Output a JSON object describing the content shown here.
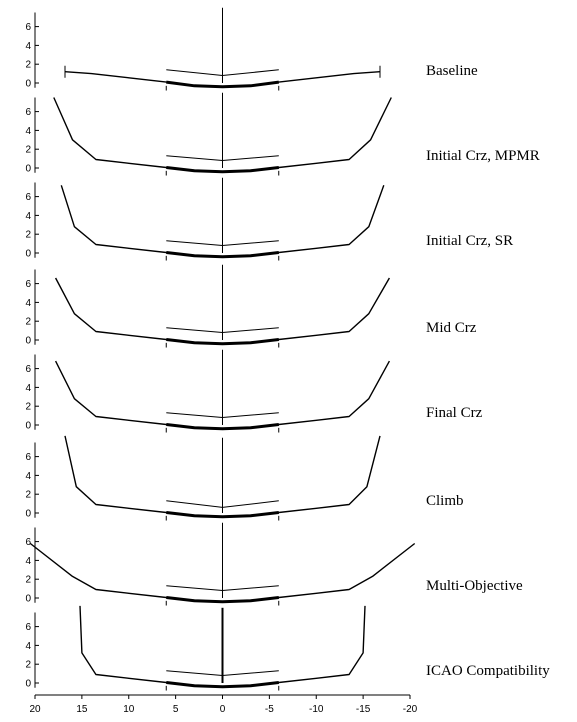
{
  "chart_data": {
    "type": "line",
    "x_ticks": [
      20,
      15,
      10,
      5,
      0,
      -5,
      -10,
      -15,
      -20
    ],
    "xlim": [
      20,
      -20
    ],
    "y_ticks": [
      0,
      2,
      4,
      6
    ],
    "ylim": [
      -0.5,
      7.5
    ],
    "colors": {
      "line": "#000000",
      "background": "#ffffff"
    },
    "panels": [
      {
        "label": "Baseline",
        "wing": [
          [
            16.8,
            1.2
          ],
          [
            14,
            1.0
          ],
          [
            10,
            0.55
          ],
          [
            6,
            0.1
          ],
          [
            3,
            -0.3
          ],
          [
            0,
            -0.4
          ],
          [
            -3,
            -0.3
          ],
          [
            -6,
            0.1
          ],
          [
            -10,
            0.55
          ],
          [
            -14,
            1.0
          ],
          [
            -16.8,
            1.2
          ]
        ],
        "wing_tip_markers": [
          16.8,
          -16.8
        ],
        "tail": [
          [
            6,
            1.4
          ],
          [
            0,
            0.8
          ],
          [
            -6,
            1.4
          ]
        ],
        "fin": [
          0,
          8
        ]
      },
      {
        "label": "Initial Crz, MPMR",
        "wing": [
          [
            18,
            7.5
          ],
          [
            16,
            3.0
          ],
          [
            13.5,
            0.9
          ],
          [
            10,
            0.5
          ],
          [
            6,
            0.05
          ],
          [
            3,
            -0.3
          ],
          [
            0,
            -0.4
          ],
          [
            -3,
            -0.3
          ],
          [
            -6,
            0.05
          ],
          [
            -10,
            0.5
          ],
          [
            -13.5,
            0.9
          ],
          [
            -15.8,
            3.0
          ],
          [
            -18,
            7.5
          ]
        ],
        "tail": [
          [
            6,
            1.3
          ],
          [
            0,
            0.8
          ],
          [
            -6,
            1.3
          ]
        ],
        "fin": [
          0,
          8
        ]
      },
      {
        "label": "Initial Crz, SR",
        "wing": [
          [
            17.2,
            7.2
          ],
          [
            15.8,
            2.8
          ],
          [
            13.5,
            0.9
          ],
          [
            10,
            0.5
          ],
          [
            6,
            0.05
          ],
          [
            3,
            -0.3
          ],
          [
            0,
            -0.4
          ],
          [
            -3,
            -0.3
          ],
          [
            -6,
            0.05
          ],
          [
            -10,
            0.5
          ],
          [
            -13.5,
            0.9
          ],
          [
            -15.6,
            2.8
          ],
          [
            -17.2,
            7.2
          ]
        ],
        "tail": [
          [
            6,
            1.3
          ],
          [
            0,
            0.8
          ],
          [
            -6,
            1.3
          ]
        ],
        "fin": [
          0,
          8
        ]
      },
      {
        "label": "Mid Crz",
        "wing": [
          [
            17.8,
            6.6
          ],
          [
            15.8,
            2.8
          ],
          [
            13.5,
            0.9
          ],
          [
            10,
            0.5
          ],
          [
            6,
            0.05
          ],
          [
            3,
            -0.3
          ],
          [
            0,
            -0.4
          ],
          [
            -3,
            -0.3
          ],
          [
            -6,
            0.05
          ],
          [
            -10,
            0.5
          ],
          [
            -13.5,
            0.9
          ],
          [
            -15.6,
            2.8
          ],
          [
            -17.8,
            6.6
          ]
        ],
        "tail": [
          [
            6,
            1.3
          ],
          [
            0,
            0.8
          ],
          [
            -6,
            1.3
          ]
        ],
        "fin": [
          0,
          8
        ]
      },
      {
        "label": "Final Crz",
        "wing": [
          [
            17.8,
            6.8
          ],
          [
            15.8,
            2.8
          ],
          [
            13.5,
            0.9
          ],
          [
            10,
            0.5
          ],
          [
            6,
            0.05
          ],
          [
            3,
            -0.3
          ],
          [
            0,
            -0.4
          ],
          [
            -3,
            -0.3
          ],
          [
            -6,
            0.05
          ],
          [
            -10,
            0.5
          ],
          [
            -13.5,
            0.9
          ],
          [
            -15.6,
            2.8
          ],
          [
            -17.8,
            6.8
          ]
        ],
        "tail": [
          [
            6,
            1.3
          ],
          [
            0,
            0.8
          ],
          [
            -6,
            1.3
          ]
        ],
        "fin": [
          0,
          8
        ]
      },
      {
        "label": "Climb",
        "wing": [
          [
            16.8,
            8.2
          ],
          [
            15.6,
            2.8
          ],
          [
            13.5,
            0.9
          ],
          [
            10,
            0.5
          ],
          [
            6,
            0.05
          ],
          [
            3,
            -0.3
          ],
          [
            0,
            -0.4
          ],
          [
            -3,
            -0.3
          ],
          [
            -6,
            0.05
          ],
          [
            -10,
            0.5
          ],
          [
            -13.5,
            0.9
          ],
          [
            -15.4,
            2.8
          ],
          [
            -16.8,
            8.2
          ]
        ],
        "tail": [
          [
            6,
            1.3
          ],
          [
            0,
            0.6
          ],
          [
            -6,
            1.3
          ]
        ],
        "fin": [
          0,
          8
        ]
      },
      {
        "label": "Multi-Objective",
        "wing": [
          [
            20.5,
            5.8
          ],
          [
            16,
            2.3
          ],
          [
            13.5,
            0.9
          ],
          [
            10,
            0.5
          ],
          [
            6,
            0.05
          ],
          [
            3,
            -0.3
          ],
          [
            0,
            -0.4
          ],
          [
            -3,
            -0.3
          ],
          [
            -6,
            0.05
          ],
          [
            -10,
            0.5
          ],
          [
            -13.5,
            0.9
          ],
          [
            -16,
            2.3
          ],
          [
            -20.5,
            5.8
          ]
        ],
        "tail": [
          [
            6,
            1.3
          ],
          [
            0,
            0.8
          ],
          [
            -6,
            1.3
          ]
        ],
        "fin": [
          0,
          8
        ]
      },
      {
        "label": "ICAO Compatibility",
        "wing": [
          [
            15.2,
            8.2
          ],
          [
            15.0,
            3.2
          ],
          [
            13.5,
            0.9
          ],
          [
            10,
            0.5
          ],
          [
            6,
            0.05
          ],
          [
            3,
            -0.3
          ],
          [
            0,
            -0.4
          ],
          [
            -3,
            -0.3
          ],
          [
            -6,
            0.05
          ],
          [
            -10,
            0.5
          ],
          [
            -13.5,
            0.9
          ],
          [
            -15.0,
            3.2
          ],
          [
            -15.2,
            8.2
          ]
        ],
        "tail": [
          [
            6,
            1.3
          ],
          [
            0,
            0.8
          ],
          [
            -6,
            1.3
          ]
        ],
        "fin": [
          0,
          8
        ]
      }
    ]
  }
}
